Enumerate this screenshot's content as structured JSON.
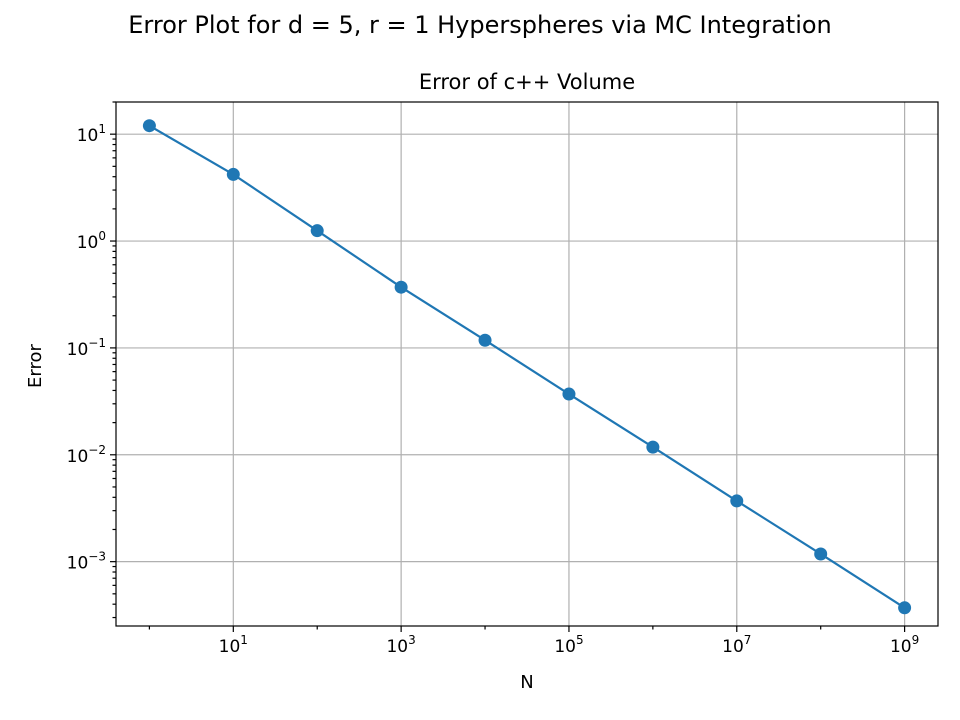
{
  "figure": {
    "suptitle": "Error Plot for d = 5, r = 1 Hyperspheres via MC Integration"
  },
  "chart_data": {
    "type": "line",
    "title": "Error of c++ Volume",
    "xlabel": "N",
    "ylabel": "Error",
    "xscale": "log",
    "yscale": "log",
    "grid": true,
    "xlim": [
      0.4,
      2500000000
    ],
    "ylim": [
      0.00025,
      20
    ],
    "xticks": [
      {
        "value": 10,
        "base": "10",
        "exp": "1"
      },
      {
        "value": 1000,
        "base": "10",
        "exp": "3"
      },
      {
        "value": 100000,
        "base": "10",
        "exp": "5"
      },
      {
        "value": 10000000,
        "base": "10",
        "exp": "7"
      },
      {
        "value": 1000000000,
        "base": "10",
        "exp": "9"
      }
    ],
    "yticks": [
      {
        "value": 10,
        "base": "10",
        "exp": "1"
      },
      {
        "value": 1,
        "base": "10",
        "exp": "0"
      },
      {
        "value": 0.1,
        "base": "10",
        "exp": "−1"
      },
      {
        "value": 0.01,
        "base": "10",
        "exp": "−2"
      },
      {
        "value": 0.001,
        "base": "10",
        "exp": "−3"
      }
    ],
    "series": [
      {
        "color": "#1f77b4",
        "marker": "circle",
        "x": [
          1,
          10,
          100,
          1000,
          10000,
          100000,
          1000000,
          10000000,
          100000000,
          1000000000
        ],
        "y": [
          12,
          4.2,
          1.25,
          0.37,
          0.118,
          0.037,
          0.0118,
          0.0037,
          0.00118,
          0.00037
        ]
      }
    ]
  }
}
